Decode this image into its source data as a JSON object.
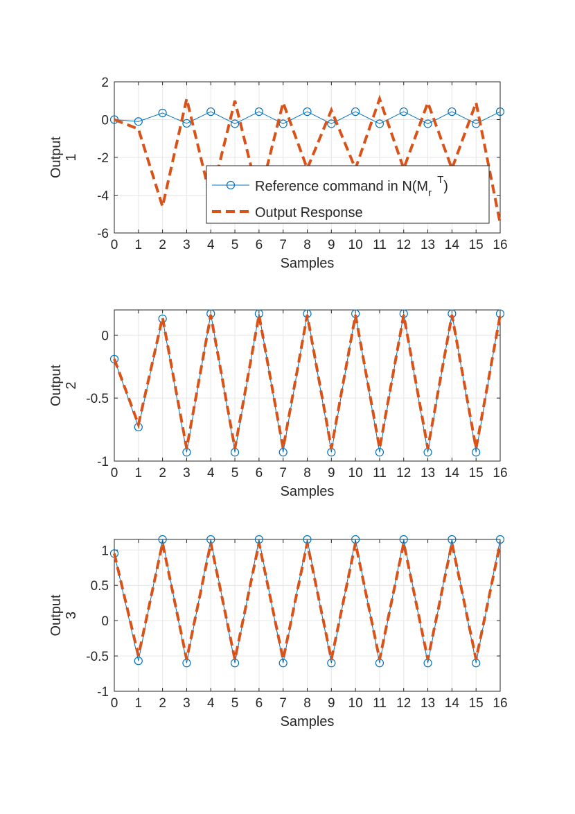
{
  "colors": {
    "reference": "#0072BD",
    "response": "#D95319",
    "grid": "#e6e6e6",
    "axis": "#262626"
  },
  "chart_data": [
    {
      "type": "line",
      "xlabel": "Samples",
      "ylabel": [
        "Output",
        "1"
      ],
      "xlim": [
        0,
        16
      ],
      "ylim": [
        -6,
        2
      ],
      "xticks": [
        0,
        1,
        2,
        3,
        4,
        5,
        6,
        7,
        8,
        9,
        10,
        11,
        12,
        13,
        14,
        15,
        16
      ],
      "yticks": [
        2,
        0,
        -2,
        -4,
        -6
      ],
      "ytick_labels": [
        "2",
        "0",
        "-2",
        "-4",
        "-6"
      ],
      "grid": true,
      "legend": {
        "placement": "lower-right",
        "entries": [
          {
            "pre": "Reference command in N(M",
            "sub": "r",
            "sup": "T",
            "post": ")"
          },
          {
            "text": "Output Response"
          }
        ]
      },
      "x": [
        0,
        1,
        2,
        3,
        4,
        5,
        6,
        7,
        8,
        9,
        10,
        11,
        12,
        13,
        14,
        15,
        16
      ],
      "series": [
        {
          "style": "reference",
          "values": [
            0.0,
            -0.1,
            0.35,
            -0.2,
            0.42,
            -0.22,
            0.42,
            -0.22,
            0.42,
            -0.22,
            0.42,
            -0.22,
            0.42,
            -0.22,
            0.42,
            -0.22,
            0.42
          ]
        },
        {
          "style": "response",
          "values": [
            0.0,
            -0.5,
            -4.6,
            1.1,
            -4.2,
            1.0,
            -4.2,
            0.9,
            -2.6,
            0.5,
            -2.6,
            1.1,
            -2.6,
            0.9,
            -2.6,
            0.9,
            -5.5
          ]
        }
      ]
    },
    {
      "type": "line",
      "xlabel": "Samples",
      "ylabel": [
        "Output",
        "2"
      ],
      "xlim": [
        0,
        16
      ],
      "ylim": [
        -1,
        0.2
      ],
      "xticks": [
        0,
        1,
        2,
        3,
        4,
        5,
        6,
        7,
        8,
        9,
        10,
        11,
        12,
        13,
        14,
        15,
        16
      ],
      "yticks": [
        0,
        -0.5,
        -1
      ],
      "ytick_labels": [
        "0",
        "-0.5",
        "-1"
      ],
      "grid": true,
      "x": [
        0,
        1,
        2,
        3,
        4,
        5,
        6,
        7,
        8,
        9,
        10,
        11,
        12,
        13,
        14,
        15,
        16
      ],
      "series": [
        {
          "style": "reference",
          "values": [
            -0.19,
            -0.73,
            0.13,
            -0.93,
            0.17,
            -0.93,
            0.17,
            -0.93,
            0.17,
            -0.93,
            0.17,
            -0.93,
            0.17,
            -0.93,
            0.17,
            -0.93,
            0.17
          ]
        },
        {
          "style": "response",
          "values": [
            -0.19,
            -0.71,
            0.14,
            -0.9,
            0.16,
            -0.9,
            0.16,
            -0.9,
            0.16,
            -0.9,
            0.16,
            -0.9,
            0.16,
            -0.9,
            0.16,
            -0.9,
            0.16
          ]
        }
      ]
    },
    {
      "type": "line",
      "xlabel": "Samples",
      "ylabel": [
        "Output",
        "3"
      ],
      "xlim": [
        0,
        16
      ],
      "ylim": [
        -1,
        1.15
      ],
      "xticks": [
        0,
        1,
        2,
        3,
        4,
        5,
        6,
        7,
        8,
        9,
        10,
        11,
        12,
        13,
        14,
        15,
        16
      ],
      "yticks": [
        1,
        0.5,
        0,
        -0.5,
        -1
      ],
      "ytick_labels": [
        "1",
        "0.5",
        "0",
        "-0.5",
        "-1"
      ],
      "grid": true,
      "x": [
        0,
        1,
        2,
        3,
        4,
        5,
        6,
        7,
        8,
        9,
        10,
        11,
        12,
        13,
        14,
        15,
        16
      ],
      "series": [
        {
          "style": "reference",
          "values": [
            0.95,
            -0.57,
            1.15,
            -0.6,
            1.15,
            -0.6,
            1.15,
            -0.6,
            1.15,
            -0.6,
            1.15,
            -0.6,
            1.15,
            -0.6,
            1.15,
            -0.6,
            1.15
          ]
        },
        {
          "style": "response",
          "values": [
            0.95,
            -0.5,
            1.1,
            -0.55,
            1.1,
            -0.55,
            1.1,
            -0.55,
            1.1,
            -0.55,
            1.1,
            -0.55,
            1.1,
            -0.55,
            1.1,
            -0.55,
            1.1
          ]
        }
      ]
    }
  ]
}
